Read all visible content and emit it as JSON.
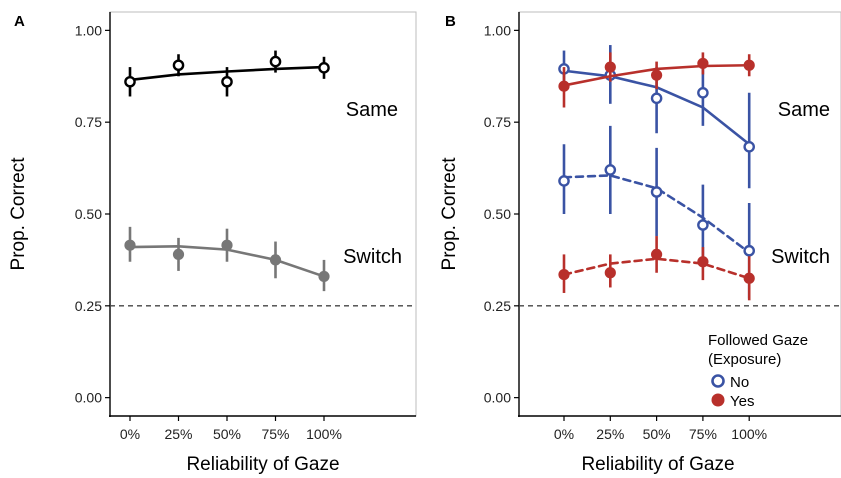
{
  "chart_data": [
    {
      "type": "line",
      "panel_label": "A",
      "xlabel": "Reliability of Gaze",
      "ylabel": "Prop. Correct",
      "categories": [
        "0%",
        "25%",
        "50%",
        "75%",
        "100%"
      ],
      "ylim": [
        -0.05,
        1.05
      ],
      "yticks": [
        "0.00",
        "0.25",
        "0.50",
        "0.75",
        "1.00"
      ],
      "reference_line": 0.25,
      "grid": false,
      "series": [
        {
          "label": "Same",
          "color": "#000000",
          "marker": "open",
          "line": "solid",
          "values": [
            0.86,
            0.905,
            0.86,
            0.915,
            0.898
          ],
          "ci_low": [
            0.82,
            0.875,
            0.82,
            0.885,
            0.868
          ],
          "ci_high": [
            0.9,
            0.935,
            0.9,
            0.945,
            0.928
          ],
          "fit": [
            0.865,
            0.88,
            0.888,
            0.895,
            0.9
          ]
        },
        {
          "label": "Switch",
          "color": "#777777",
          "marker": "filled",
          "line": "solid",
          "values": [
            0.415,
            0.39,
            0.415,
            0.375,
            0.33
          ],
          "ci_low": [
            0.37,
            0.345,
            0.37,
            0.325,
            0.29
          ],
          "ci_high": [
            0.465,
            0.435,
            0.46,
            0.425,
            0.375
          ],
          "fit": [
            0.41,
            0.412,
            0.403,
            0.375,
            0.33
          ]
        }
      ]
    },
    {
      "type": "line",
      "panel_label": "B",
      "xlabel": "Reliability of Gaze",
      "ylabel": "Prop. Correct",
      "categories": [
        "0%",
        "25%",
        "50%",
        "75%",
        "100%"
      ],
      "ylim": [
        -0.05,
        1.05
      ],
      "yticks": [
        "0.00",
        "0.25",
        "0.50",
        "0.75",
        "1.00"
      ],
      "reference_line": 0.25,
      "grid": false,
      "legend": {
        "title_line1": "Followed Gaze",
        "title_line2": "(Exposure)",
        "entries": [
          "No",
          "Yes"
        ],
        "placement": "bottom-right"
      },
      "annotations": [
        "Same",
        "Switch"
      ],
      "series": [
        {
          "label": "Same",
          "followed": "No",
          "color": "#3a53a4",
          "marker": "open",
          "line": "solid",
          "values": [
            0.895,
            0.878,
            0.815,
            0.83,
            0.683
          ],
          "ci_low": [
            0.835,
            0.8,
            0.72,
            0.74,
            0.57
          ],
          "ci_high": [
            0.945,
            0.96,
            0.9,
            0.91,
            0.83
          ],
          "fit": [
            0.89,
            0.875,
            0.845,
            0.79,
            0.69
          ]
        },
        {
          "label": "Same",
          "followed": "Yes",
          "color": "#b8302b",
          "marker": "filled",
          "line": "solid",
          "values": [
            0.848,
            0.9,
            0.878,
            0.91,
            0.905
          ],
          "ci_low": [
            0.79,
            0.86,
            0.84,
            0.88,
            0.875
          ],
          "ci_high": [
            0.9,
            0.94,
            0.915,
            0.94,
            0.935
          ],
          "fit": [
            0.85,
            0.875,
            0.895,
            0.903,
            0.905
          ]
        },
        {
          "label": "Switch",
          "followed": "No",
          "color": "#3a53a4",
          "marker": "open",
          "line": "dashed",
          "values": [
            0.59,
            0.62,
            0.56,
            0.47,
            0.4
          ],
          "ci_low": [
            0.5,
            0.5,
            0.44,
            0.38,
            0.27
          ],
          "ci_high": [
            0.69,
            0.74,
            0.68,
            0.58,
            0.53
          ],
          "fit": [
            0.6,
            0.605,
            0.57,
            0.49,
            0.395
          ]
        },
        {
          "label": "Switch",
          "followed": "Yes",
          "color": "#b8302b",
          "marker": "filled",
          "line": "dashed",
          "values": [
            0.335,
            0.34,
            0.39,
            0.37,
            0.325
          ],
          "ci_low": [
            0.285,
            0.3,
            0.34,
            0.32,
            0.265
          ],
          "ci_high": [
            0.39,
            0.39,
            0.44,
            0.41,
            0.385
          ],
          "fit": [
            0.335,
            0.365,
            0.378,
            0.365,
            0.325
          ]
        }
      ]
    }
  ]
}
